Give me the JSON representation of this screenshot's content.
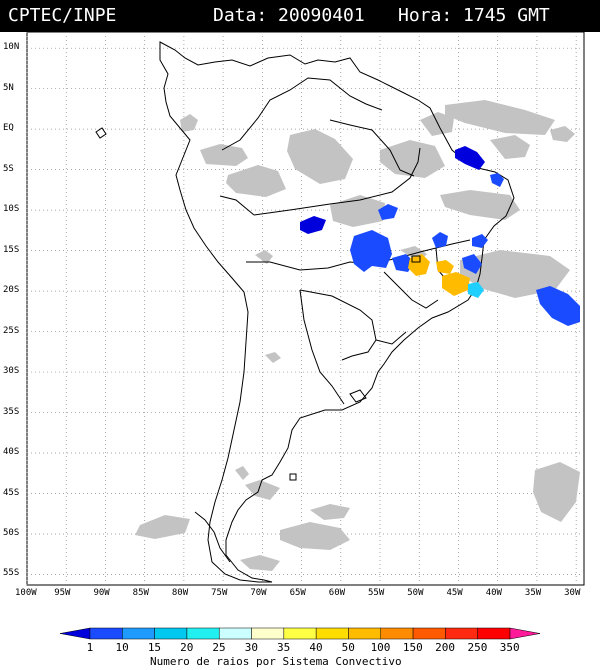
{
  "header": {
    "org": "CPTEC/INPE",
    "date_label": "Data:",
    "date_value": "20090401",
    "hour_label": "Hora:",
    "hour_value": "1745",
    "tz": "GMT"
  },
  "map": {
    "lat_labels": [
      "10N",
      "5N",
      "EQ",
      "5S",
      "10S",
      "15S",
      "20S",
      "25S",
      "30S",
      "35S",
      "40S",
      "45S",
      "50S",
      "55S"
    ],
    "lon_labels": [
      "100W",
      "95W",
      "90W",
      "85W",
      "80W",
      "75W",
      "70W",
      "65W",
      "60W",
      "55W",
      "50W",
      "45W",
      "40W",
      "35W",
      "30W"
    ],
    "lat_range": [
      10,
      -55
    ],
    "lon_range": [
      -100,
      -30
    ],
    "grid": "dotted"
  },
  "legend": {
    "title": "Numero de raios por Sistema Convectivo",
    "ticks": [
      "1",
      "10",
      "15",
      "20",
      "25",
      "30",
      "35",
      "40",
      "50",
      "100",
      "150",
      "200",
      "250",
      "350"
    ],
    "colors": [
      "#0000dd",
      "#1a4bff",
      "#1f9bff",
      "#00c8ef",
      "#22f0f0",
      "#ccffff",
      "#ffffcc",
      "#ffff44",
      "#ffdd00",
      "#ffbb00",
      "#ff8c00",
      "#ff5a00",
      "#ff2a10",
      "#ff0000",
      "#ff1a99"
    ]
  },
  "colors": {
    "cloud": "#c0c0c0",
    "coast": "#000000",
    "blue": "#1a4bff",
    "dark_blue": "#0000dd",
    "cyan": "#1fd0ff",
    "orange": "#ffb000"
  }
}
